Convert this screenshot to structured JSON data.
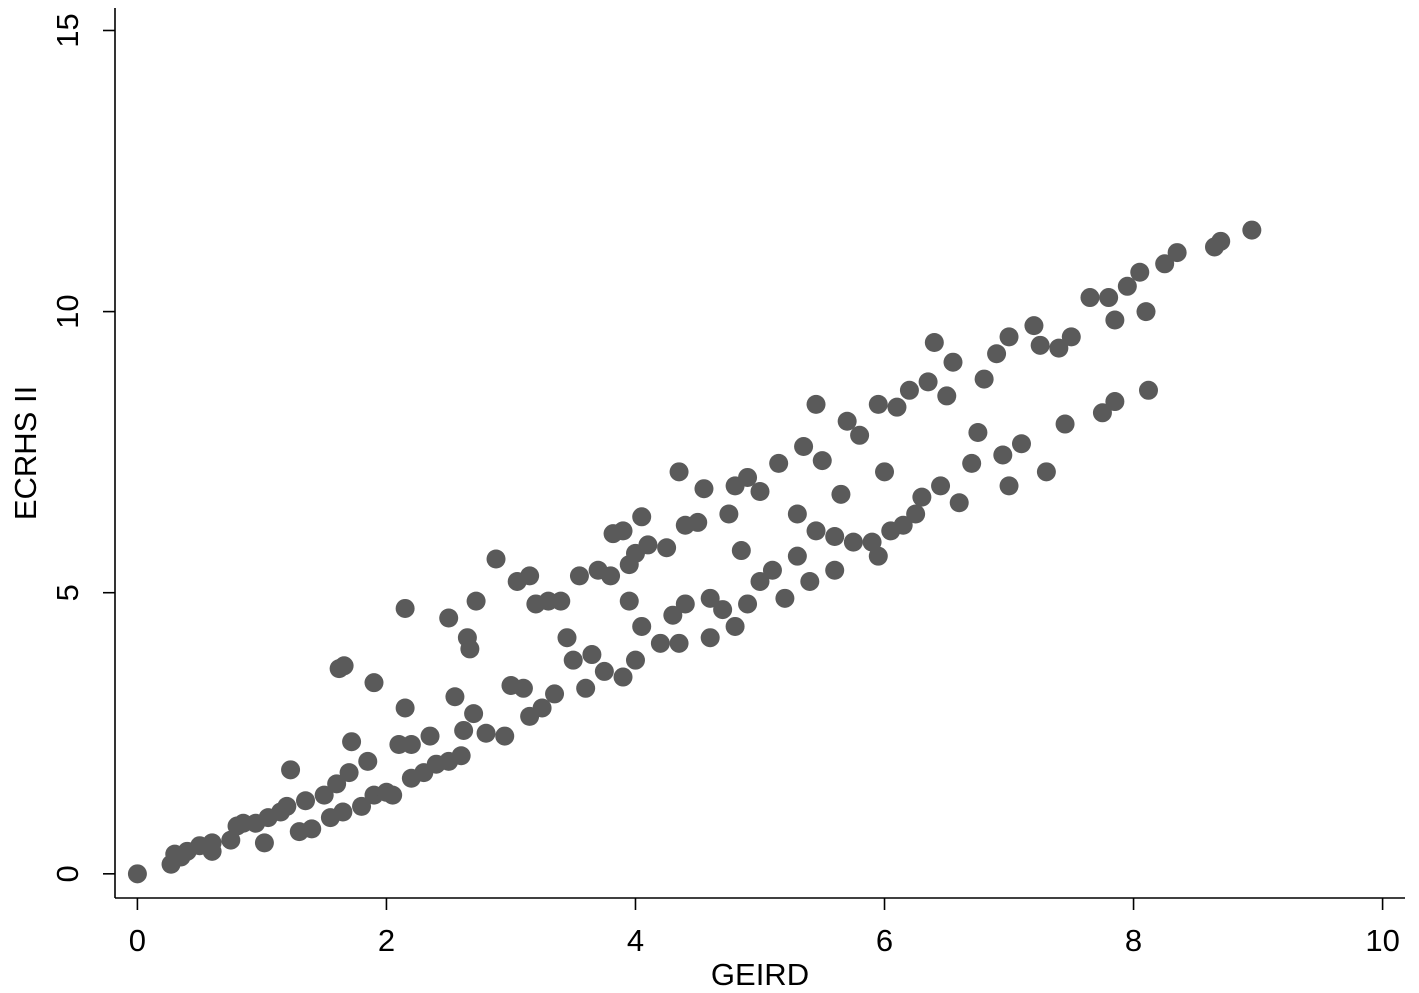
{
  "chart_data": {
    "type": "scatter",
    "x_label": "GEIRD",
    "y_label": "ECRHS II",
    "color": "#5a5a5a",
    "xlim": [
      -0.18,
      10.18
    ],
    "ylim": [
      -0.43,
      15.4
    ],
    "xticks": [
      0,
      2,
      4,
      6,
      8,
      10
    ],
    "yticks": [
      0,
      5,
      10,
      15
    ],
    "grid": false,
    "x": [
      0,
      0.27,
      0.3,
      0.35,
      0.4,
      0.5,
      0.6,
      0.6,
      0.75,
      0.8,
      0.85,
      0.95,
      1.02,
      1.05,
      1.15,
      1.2,
      1.23,
      1.3,
      1.35,
      1.4,
      1.5,
      1.55,
      1.6,
      1.65,
      1.62,
      1.66,
      1.7,
      1.72,
      1.8,
      1.85,
      1.9,
      1.9,
      2.0,
      2.05,
      2.1,
      2.15,
      2.15,
      2.2,
      2.2,
      2.3,
      2.35,
      2.4,
      2.5,
      2.5,
      2.55,
      2.6,
      2.62,
      2.65,
      2.67,
      2.7,
      2.72,
      2.8,
      2.88,
      2.95,
      3.0,
      3.05,
      3.1,
      3.15,
      3.15,
      3.2,
      3.25,
      3.3,
      3.35,
      3.4,
      3.45,
      3.5,
      3.55,
      3.6,
      3.65,
      3.7,
      3.75,
      3.8,
      3.82,
      3.9,
      3.9,
      3.95,
      3.95,
      4.0,
      4.0,
      4.05,
      4.05,
      4.1,
      4.2,
      4.25,
      4.3,
      4.35,
      4.35,
      4.4,
      4.4,
      4.5,
      4.55,
      4.6,
      4.6,
      4.7,
      4.75,
      4.8,
      4.8,
      4.85,
      4.9,
      4.9,
      5.0,
      5.0,
      5.1,
      5.15,
      5.2,
      5.3,
      5.3,
      5.35,
      5.4,
      5.45,
      5.45,
      5.5,
      5.6,
      5.6,
      5.65,
      5.7,
      5.75,
      5.8,
      5.9,
      5.95,
      5.95,
      6.0,
      6.05,
      6.1,
      6.15,
      6.2,
      6.25,
      6.3,
      6.35,
      6.4,
      6.45,
      6.5,
      6.55,
      6.6,
      6.7,
      6.75,
      6.8,
      6.9,
      6.95,
      7.0,
      7.0,
      7.1,
      7.2,
      7.25,
      7.3,
      7.4,
      7.45,
      7.5,
      7.65,
      7.75,
      7.8,
      7.85,
      7.85,
      7.95,
      8.05,
      8.1,
      8.12,
      8.25,
      8.35,
      8.65,
      8.7,
      8.95
    ],
    "values": [
      0,
      0.17,
      0.35,
      0.3,
      0.4,
      0.5,
      0.4,
      0.55,
      0.6,
      0.85,
      0.9,
      0.9,
      0.55,
      1.0,
      1.1,
      1.2,
      1.85,
      0.75,
      1.3,
      0.8,
      1.4,
      1.0,
      1.6,
      1.1,
      3.65,
      3.7,
      1.8,
      2.35,
      1.2,
      2.0,
      1.4,
      3.4,
      1.45,
      1.4,
      2.3,
      2.95,
      4.72,
      2.3,
      1.7,
      1.8,
      2.45,
      1.95,
      2.0,
      4.55,
      3.15,
      2.1,
      2.55,
      4.2,
      4.0,
      2.85,
      4.85,
      2.5,
      5.6,
      2.45,
      3.35,
      5.2,
      3.3,
      5.3,
      2.8,
      4.8,
      2.95,
      4.85,
      3.2,
      4.85,
      4.2,
      3.8,
      5.3,
      3.3,
      3.9,
      5.4,
      3.6,
      5.3,
      6.05,
      3.5,
      6.1,
      4.85,
      5.5,
      3.8,
      5.7,
      4.4,
      6.35,
      5.85,
      4.1,
      5.8,
      4.6,
      7.15,
      4.1,
      6.2,
      4.8,
      6.25,
      6.85,
      4.2,
      4.9,
      4.7,
      6.4,
      4.4,
      6.9,
      5.75,
      7.05,
      4.8,
      5.2,
      6.8,
      5.4,
      7.3,
      4.9,
      5.65,
      6.4,
      7.6,
      5.2,
      8.35,
      6.1,
      7.35,
      5.4,
      6.0,
      6.75,
      8.05,
      5.9,
      7.8,
      5.9,
      8.35,
      5.65,
      7.15,
      6.1,
      8.3,
      6.2,
      8.6,
      6.4,
      6.7,
      8.75,
      9.45,
      6.9,
      8.5,
      9.1,
      6.6,
      7.3,
      7.85,
      8.8,
      9.25,
      7.45,
      6.9,
      9.55,
      7.65,
      9.75,
      9.4,
      7.15,
      9.35,
      8.0,
      9.55,
      10.25,
      8.2,
      10.25,
      9.85,
      8.4,
      10.45,
      10.7,
      10.0,
      8.6,
      10.85,
      11.05,
      11.15,
      11.25,
      11.45
    ]
  }
}
